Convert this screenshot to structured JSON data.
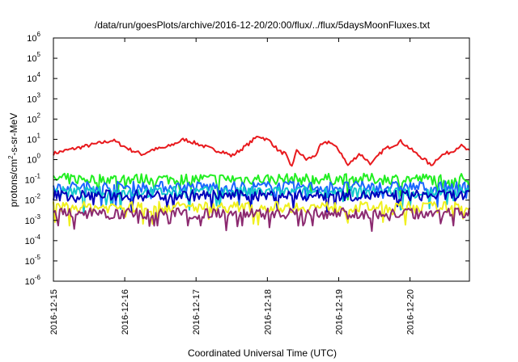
{
  "chart_data": {
    "type": "line",
    "title": "/data/run/goesPlots/archive/2016-12-20/20:00/flux/../flux/5daysMoonFluxes.txt",
    "xlabel": "Coordinated Universal Time (UTC)",
    "ylabel_parts": [
      "protons/cm",
      "2",
      "-s-sr-MeV"
    ],
    "x_range": [
      "2016-12-15T00:00",
      "2016-12-20T20:00"
    ],
    "x_ticks": [
      "2016-12-15",
      "2016-12-16",
      "2016-12-17",
      "2016-12-18",
      "2016-12-19",
      "2016-12-20"
    ],
    "y_scale": "log",
    "ylim": [
      1e-06,
      1000000.0
    ],
    "y_ticks": [
      {
        "base": "10",
        "exp": "-6"
      },
      {
        "base": "10",
        "exp": "-5"
      },
      {
        "base": "10",
        "exp": "-4"
      },
      {
        "base": "10",
        "exp": "-3"
      },
      {
        "base": "10",
        "exp": "-2"
      },
      {
        "base": "10",
        "exp": "-1"
      },
      {
        "base": "10",
        "exp": "0"
      },
      {
        "base": "10",
        "exp": "1"
      },
      {
        "base": "10",
        "exp": "2"
      },
      {
        "base": "10",
        "exp": "3"
      },
      {
        "base": "10",
        "exp": "4"
      },
      {
        "base": "10",
        "exp": "5"
      },
      {
        "base": "10",
        "exp": "6"
      }
    ],
    "grid": false,
    "legend": "none",
    "series": [
      {
        "color": "#e8191d",
        "base": 3.5,
        "points": [
          [
            "2016-12-15T00:00",
            2.0
          ],
          [
            "2016-12-15T05:00",
            3.0
          ],
          [
            "2016-12-15T12:00",
            5.0
          ],
          [
            "2016-12-15T20:00",
            9.0
          ],
          [
            "2016-12-16T02:00",
            3.0
          ],
          [
            "2016-12-16T06:00",
            1.8
          ],
          [
            "2016-12-16T09:00",
            3.0
          ],
          [
            "2016-12-16T14:00",
            4.0
          ],
          [
            "2016-12-16T20:00",
            10.0
          ],
          [
            "2016-12-17T02:00",
            5.0
          ],
          [
            "2016-12-17T06:00",
            3.0
          ],
          [
            "2016-12-17T09:00",
            2.5
          ],
          [
            "2016-12-17T12:00",
            1.5
          ],
          [
            "2016-12-17T17:00",
            5.0
          ],
          [
            "2016-12-17T21:00",
            15.0
          ],
          [
            "2016-12-18T01:00",
            8.0
          ],
          [
            "2016-12-18T04:00",
            2.5
          ],
          [
            "2016-12-18T06:00",
            2.0
          ],
          [
            "2016-12-18T08:00",
            0.4
          ],
          [
            "2016-12-18T10:00",
            3.0
          ],
          [
            "2016-12-18T13:00",
            1.0
          ],
          [
            "2016-12-18T16:00",
            1.5
          ],
          [
            "2016-12-18T18:00",
            5.0
          ],
          [
            "2016-12-18T21:00",
            8.0
          ],
          [
            "2016-12-19T01:00",
            2.0
          ],
          [
            "2016-12-19T03:00",
            0.5
          ],
          [
            "2016-12-19T07:00",
            2.0
          ],
          [
            "2016-12-19T11:00",
            0.6
          ],
          [
            "2016-12-19T15:00",
            3.0
          ],
          [
            "2016-12-19T21:00",
            8.0
          ],
          [
            "2016-12-20T02:00",
            2.0
          ],
          [
            "2016-12-20T05:00",
            1.0
          ],
          [
            "2016-12-20T07:00",
            0.5
          ],
          [
            "2016-12-20T10:00",
            1.5
          ],
          [
            "2016-12-20T14:00",
            2.5
          ],
          [
            "2016-12-20T17:00",
            5.0
          ],
          [
            "2016-12-20T20:00",
            2.5
          ]
        ]
      },
      {
        "color": "#22ee22",
        "base": 0.11,
        "points": []
      },
      {
        "color": "#1a66ff",
        "base": 0.045,
        "points": []
      },
      {
        "color": "#14c8cc",
        "base": 0.025,
        "points": []
      },
      {
        "color": "#0000bb",
        "base": 0.017,
        "points": []
      },
      {
        "color": "#f0f020",
        "base": 0.0045,
        "points": []
      },
      {
        "color": "#8c2a70",
        "base": 0.0022,
        "points": []
      }
    ]
  }
}
